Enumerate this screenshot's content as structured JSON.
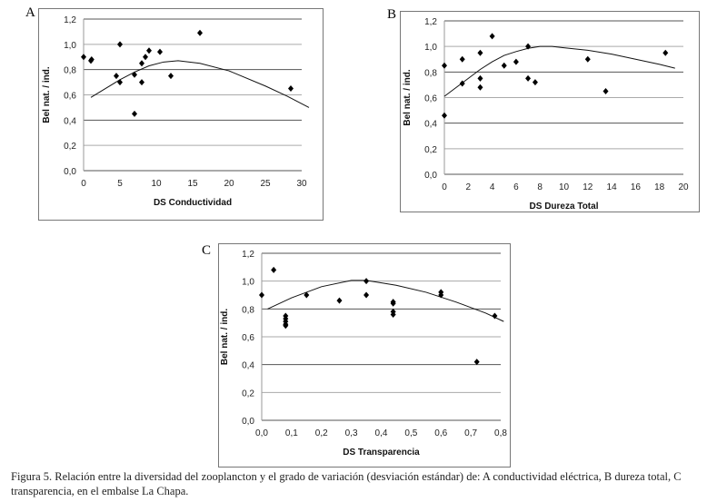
{
  "caption": "Figura 5. Relación entre la diversidad del zooplancton y el grado de variación (desviación estándar) de: A conductividad eléctrica, B dureza total, C transparencia, en el embalse La Chapa.",
  "chart_data": [
    {
      "panel": "A",
      "type": "scatter",
      "xlabel": "DS Conductividad",
      "ylabel": "Bel nat. / ind.",
      "xlim": [
        0,
        30
      ],
      "ylim": [
        0,
        1.2
      ],
      "xticks": [
        "0",
        "5",
        "10",
        "15",
        "20",
        "25",
        "30"
      ],
      "yticks": [
        "0,0",
        "0,2",
        "0,4",
        "0,6",
        "0,8",
        "1,0",
        "1,2"
      ],
      "grid": true,
      "points": [
        [
          0,
          0.9
        ],
        [
          1,
          0.87
        ],
        [
          1.1,
          0.88
        ],
        [
          4.5,
          0.75
        ],
        [
          5,
          1.0
        ],
        [
          5,
          0.7
        ],
        [
          7,
          0.76
        ],
        [
          7,
          0.45
        ],
        [
          8,
          0.85
        ],
        [
          8,
          0.7
        ],
        [
          8.5,
          0.9
        ],
        [
          9,
          0.95
        ],
        [
          10.5,
          0.94
        ],
        [
          12,
          0.75
        ],
        [
          16,
          1.09
        ],
        [
          28.5,
          0.65
        ]
      ],
      "trend": [
        [
          1,
          0.58
        ],
        [
          3,
          0.65
        ],
        [
          5,
          0.72
        ],
        [
          7,
          0.78
        ],
        [
          9,
          0.83
        ],
        [
          11,
          0.86
        ],
        [
          13,
          0.87
        ],
        [
          16,
          0.85
        ],
        [
          20,
          0.79
        ],
        [
          25,
          0.67
        ],
        [
          28,
          0.59
        ],
        [
          31,
          0.5
        ]
      ]
    },
    {
      "panel": "B",
      "type": "scatter",
      "xlabel": "DS Dureza Total",
      "ylabel": "Bel nat. / ind.",
      "xlim": [
        0,
        20
      ],
      "ylim": [
        0,
        1.2
      ],
      "xticks": [
        "0",
        "2",
        "4",
        "6",
        "8",
        "10",
        "12",
        "14",
        "16",
        "18",
        "20"
      ],
      "yticks": [
        "0,0",
        "0,2",
        "0,4",
        "0,6",
        "0,8",
        "1,0",
        "1,2"
      ],
      "grid": true,
      "points": [
        [
          0,
          0.85
        ],
        [
          0,
          0.46
        ],
        [
          1.5,
          0.9
        ],
        [
          1.5,
          0.71
        ],
        [
          3,
          0.95
        ],
        [
          3,
          0.75
        ],
        [
          3,
          0.68
        ],
        [
          4,
          1.08
        ],
        [
          5,
          0.85
        ],
        [
          6,
          0.88
        ],
        [
          7,
          1.0
        ],
        [
          7,
          0.75
        ],
        [
          7.6,
          0.72
        ],
        [
          12,
          0.9
        ],
        [
          13.5,
          0.65
        ],
        [
          18.5,
          0.95
        ]
      ],
      "trend": [
        [
          0,
          0.61
        ],
        [
          1,
          0.68
        ],
        [
          2,
          0.75
        ],
        [
          3,
          0.82
        ],
        [
          4,
          0.88
        ],
        [
          5,
          0.93
        ],
        [
          6,
          0.96
        ],
        [
          7,
          0.985
        ],
        [
          8,
          1.0
        ],
        [
          9,
          1.0
        ],
        [
          10,
          0.99
        ],
        [
          12,
          0.97
        ],
        [
          14,
          0.94
        ],
        [
          16,
          0.9
        ],
        [
          18,
          0.86
        ],
        [
          19.3,
          0.83
        ]
      ]
    },
    {
      "panel": "C",
      "type": "scatter",
      "xlabel": "DS Transparencia",
      "ylabel": "Bel nat. / ind.",
      "xlim": [
        0,
        0.8
      ],
      "ylim": [
        0,
        1.2
      ],
      "xticks": [
        "0,0",
        "0,1",
        "0,2",
        "0,3",
        "0,4",
        "0,5",
        "0,6",
        "0,7",
        "0,8"
      ],
      "yticks": [
        "0,0",
        "0,2",
        "0,4",
        "0,6",
        "0,8",
        "1,0",
        "1,2"
      ],
      "grid": true,
      "points": [
        [
          0,
          0.9
        ],
        [
          0.04,
          1.08
        ],
        [
          0.08,
          0.75
        ],
        [
          0.08,
          0.73
        ],
        [
          0.08,
          0.71
        ],
        [
          0.08,
          0.69
        ],
        [
          0.08,
          0.68
        ],
        [
          0.15,
          0.9
        ],
        [
          0.26,
          0.86
        ],
        [
          0.35,
          1.0
        ],
        [
          0.35,
          0.9
        ],
        [
          0.44,
          0.85
        ],
        [
          0.44,
          0.84
        ],
        [
          0.44,
          0.78
        ],
        [
          0.44,
          0.76
        ],
        [
          0.6,
          0.92
        ],
        [
          0.6,
          0.9
        ],
        [
          0.72,
          0.42
        ],
        [
          0.78,
          0.75
        ]
      ],
      "trend": [
        [
          0.02,
          0.8
        ],
        [
          0.1,
          0.88
        ],
        [
          0.2,
          0.96
        ],
        [
          0.3,
          1.005
        ],
        [
          0.35,
          1.005
        ],
        [
          0.45,
          0.97
        ],
        [
          0.55,
          0.92
        ],
        [
          0.65,
          0.85
        ],
        [
          0.75,
          0.77
        ],
        [
          0.81,
          0.71
        ]
      ]
    }
  ]
}
